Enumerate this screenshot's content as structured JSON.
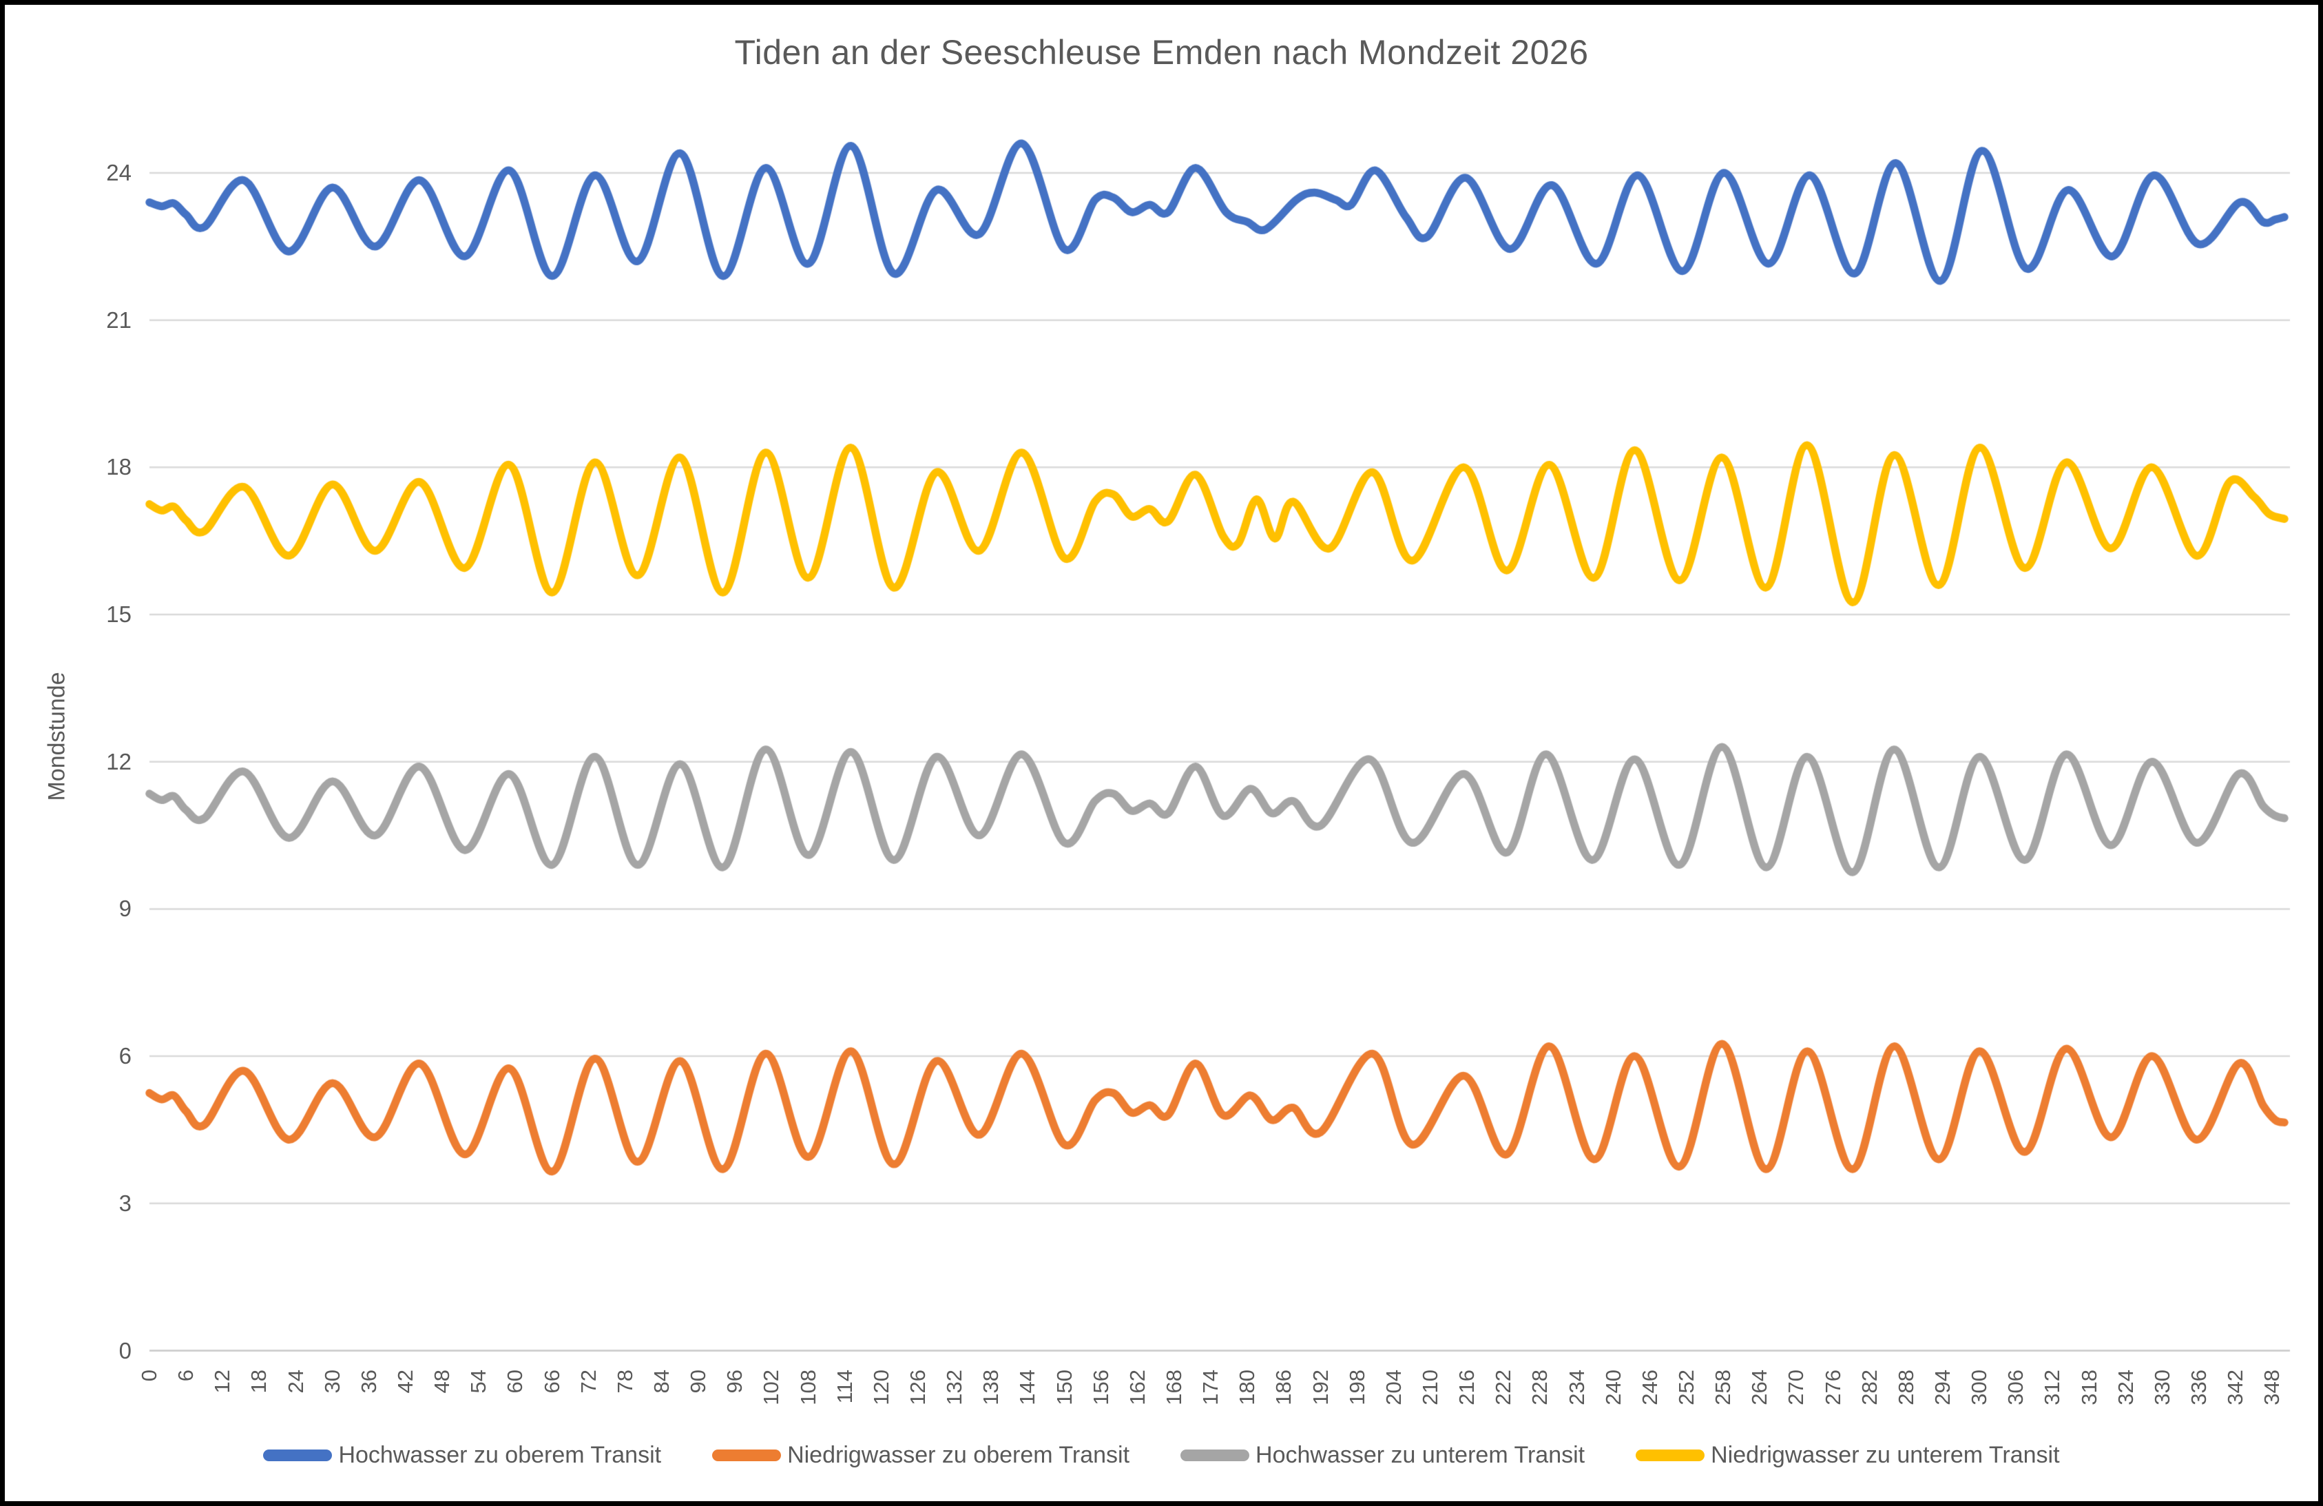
{
  "title": "Tiden an der Seeschleuse Emden nach Mondzeit 2026",
  "y_axis": {
    "label": "Mondstunde",
    "min": 0,
    "max": 24,
    "tick_step": 3,
    "ticks": [
      0,
      3,
      6,
      9,
      12,
      15,
      18,
      21,
      24
    ]
  },
  "x_axis": {
    "min": 0,
    "max": 348,
    "tick_step": 6,
    "ticks": [
      0,
      6,
      12,
      18,
      24,
      30,
      36,
      42,
      48,
      54,
      60,
      66,
      72,
      78,
      84,
      90,
      96,
      102,
      108,
      114,
      120,
      126,
      132,
      138,
      144,
      150,
      156,
      162,
      168,
      174,
      180,
      186,
      192,
      198,
      204,
      210,
      216,
      222,
      228,
      234,
      240,
      246,
      252,
      258,
      264,
      270,
      276,
      282,
      288,
      294,
      300,
      306,
      312,
      318,
      324,
      330,
      336,
      342,
      348
    ]
  },
  "legend": [
    {
      "label": "Hochwasser zu oberem Transit",
      "color": "#4472C4"
    },
    {
      "label": "Niedrigwasser zu oberem Transit",
      "color": "#ED7D31"
    },
    {
      "label": "Hochwasser zu unterem Transit",
      "color": "#A5A5A5"
    },
    {
      "label": "Niedrigwasser zu unterem Transit",
      "color": "#FFC000"
    }
  ],
  "colors": {
    "grid": "#D9D9D9",
    "axis_line": "#C8C8C8",
    "text": "#595959",
    "background": "#FFFFFF"
  },
  "chart_data": {
    "type": "line",
    "title": "Tiden an der Seeschleuse Emden nach Mondzeit 2026",
    "xlabel": "",
    "ylabel": "Mondstunde",
    "xlim": [
      0,
      350
    ],
    "ylim": [
      0,
      24
    ],
    "grid": true,
    "legend_position": "bottom",
    "series": [
      {
        "name": "Hochwasser zu oberem Transit",
        "color": "#4472C4",
        "points": [
          [
            0,
            23.4
          ],
          [
            2,
            23.32
          ],
          [
            4,
            23.38
          ],
          [
            6,
            23.15
          ],
          [
            9,
            22.9
          ],
          [
            15.5,
            23.85
          ],
          [
            22.8,
            22.4
          ],
          [
            30,
            23.7
          ],
          [
            37,
            22.5
          ],
          [
            44.3,
            23.85
          ],
          [
            51.7,
            22.3
          ],
          [
            59,
            24.05
          ],
          [
            66,
            21.9
          ],
          [
            73,
            23.95
          ],
          [
            80,
            22.2
          ],
          [
            87,
            24.4
          ],
          [
            94,
            21.9
          ],
          [
            101,
            24.1
          ],
          [
            108,
            22.15
          ],
          [
            115,
            24.55
          ],
          [
            122,
            21.95
          ],
          [
            129,
            23.65
          ],
          [
            136,
            22.75
          ],
          [
            143,
            24.6
          ],
          [
            150,
            22.45
          ],
          [
            155,
            23.45
          ],
          [
            158,
            23.5
          ],
          [
            161,
            23.2
          ],
          [
            164,
            23.35
          ],
          [
            167,
            23.2
          ],
          [
            171.5,
            24.1
          ],
          [
            176.5,
            23.2
          ],
          [
            180,
            23.0
          ],
          [
            183,
            22.85
          ],
          [
            188,
            23.45
          ],
          [
            191,
            23.6
          ],
          [
            194.5,
            23.45
          ],
          [
            197,
            23.35
          ],
          [
            201,
            24.05
          ],
          [
            206,
            23.1
          ],
          [
            209.5,
            22.7
          ],
          [
            215.8,
            23.9
          ],
          [
            223,
            22.45
          ],
          [
            229.9,
            23.75
          ],
          [
            237.2,
            22.15
          ],
          [
            244,
            23.95
          ],
          [
            251.3,
            22.0
          ],
          [
            258.1,
            24.0
          ],
          [
            265.4,
            22.15
          ],
          [
            272.2,
            23.95
          ],
          [
            279.5,
            21.95
          ],
          [
            286.3,
            24.2
          ],
          [
            293.6,
            21.8
          ],
          [
            300.4,
            24.45
          ],
          [
            307.7,
            22.05
          ],
          [
            314.5,
            23.65
          ],
          [
            321.8,
            22.3
          ],
          [
            328.6,
            23.95
          ],
          [
            335.9,
            22.55
          ],
          [
            342.7,
            23.4
          ],
          [
            346.5,
            23.0
          ],
          [
            348.5,
            23.05
          ],
          [
            350,
            23.1
          ]
        ]
      },
      {
        "name": "Niedrigwasser zu oberem Transit",
        "color": "#ED7D31",
        "points": [
          [
            0,
            5.25
          ],
          [
            2,
            5.12
          ],
          [
            4,
            5.2
          ],
          [
            6,
            4.88
          ],
          [
            9,
            4.6
          ],
          [
            15.5,
            5.7
          ],
          [
            22.8,
            4.3
          ],
          [
            30,
            5.45
          ],
          [
            37,
            4.35
          ],
          [
            44.3,
            5.85
          ],
          [
            51.7,
            4.0
          ],
          [
            59,
            5.75
          ],
          [
            66,
            3.65
          ],
          [
            73,
            5.95
          ],
          [
            80,
            3.85
          ],
          [
            87,
            5.9
          ],
          [
            94,
            3.7
          ],
          [
            101,
            6.05
          ],
          [
            108,
            3.95
          ],
          [
            115,
            6.1
          ],
          [
            122,
            3.8
          ],
          [
            129,
            5.9
          ],
          [
            136,
            4.4
          ],
          [
            143,
            6.05
          ],
          [
            150,
            4.2
          ],
          [
            155,
            5.1
          ],
          [
            158,
            5.25
          ],
          [
            161,
            4.85
          ],
          [
            164,
            5.0
          ],
          [
            167,
            4.8
          ],
          [
            171.5,
            5.85
          ],
          [
            176,
            4.8
          ],
          [
            180.5,
            5.2
          ],
          [
            184,
            4.7
          ],
          [
            187.5,
            4.95
          ],
          [
            192,
            4.45
          ],
          [
            200.5,
            6.05
          ],
          [
            207,
            4.2
          ],
          [
            215.5,
            5.6
          ],
          [
            222.5,
            4.0
          ],
          [
            229.5,
            6.2
          ],
          [
            236.8,
            3.9
          ],
          [
            243.5,
            6.0
          ],
          [
            250.8,
            3.75
          ],
          [
            257.8,
            6.25
          ],
          [
            265,
            3.7
          ],
          [
            271.8,
            6.1
          ],
          [
            279.2,
            3.7
          ],
          [
            286,
            6.2
          ],
          [
            293.3,
            3.9
          ],
          [
            300,
            6.1
          ],
          [
            307.4,
            4.05
          ],
          [
            314.2,
            6.15
          ],
          [
            321.5,
            4.35
          ],
          [
            328.3,
            6.0
          ],
          [
            335.6,
            4.3
          ],
          [
            342.5,
            5.85
          ],
          [
            346.5,
            5.0
          ],
          [
            348.5,
            4.7
          ],
          [
            350,
            4.65
          ]
        ]
      },
      {
        "name": "Hochwasser zu unterem Transit",
        "color": "#A5A5A5",
        "points": [
          [
            0,
            11.35
          ],
          [
            2,
            11.22
          ],
          [
            4,
            11.3
          ],
          [
            6,
            11.02
          ],
          [
            9,
            10.85
          ],
          [
            15.5,
            11.8
          ],
          [
            22.8,
            10.45
          ],
          [
            30,
            11.6
          ],
          [
            37,
            10.5
          ],
          [
            44.3,
            11.9
          ],
          [
            51.7,
            10.2
          ],
          [
            59,
            11.75
          ],
          [
            66,
            9.9
          ],
          [
            73,
            12.1
          ],
          [
            80,
            9.9
          ],
          [
            87,
            11.95
          ],
          [
            94,
            9.85
          ],
          [
            101,
            12.25
          ],
          [
            108,
            10.1
          ],
          [
            115,
            12.2
          ],
          [
            122,
            10.0
          ],
          [
            129,
            12.1
          ],
          [
            136,
            10.5
          ],
          [
            143,
            12.15
          ],
          [
            150,
            10.35
          ],
          [
            155,
            11.2
          ],
          [
            158,
            11.35
          ],
          [
            161,
            11.0
          ],
          [
            164,
            11.15
          ],
          [
            167,
            10.95
          ],
          [
            171.5,
            11.9
          ],
          [
            176,
            10.9
          ],
          [
            180.5,
            11.45
          ],
          [
            184,
            10.95
          ],
          [
            187.5,
            11.2
          ],
          [
            192,
            10.7
          ],
          [
            200,
            12.05
          ],
          [
            207,
            10.35
          ],
          [
            215.5,
            11.75
          ],
          [
            222.5,
            10.15
          ],
          [
            229,
            12.15
          ],
          [
            236.5,
            10.0
          ],
          [
            243.5,
            12.05
          ],
          [
            250.8,
            9.9
          ],
          [
            257.8,
            12.3
          ],
          [
            265,
            9.85
          ],
          [
            271.8,
            12.1
          ],
          [
            279.2,
            9.75
          ],
          [
            286,
            12.25
          ],
          [
            293.3,
            9.85
          ],
          [
            300,
            12.1
          ],
          [
            307.4,
            10.0
          ],
          [
            314.2,
            12.15
          ],
          [
            321.5,
            10.3
          ],
          [
            328.3,
            12.0
          ],
          [
            335.6,
            10.35
          ],
          [
            342.5,
            11.75
          ],
          [
            346.5,
            11.1
          ],
          [
            348.5,
            10.9
          ],
          [
            350,
            10.85
          ]
        ]
      },
      {
        "name": "Niedrigwasser zu unterem Transit",
        "color": "#FFC000",
        "points": [
          [
            0,
            17.25
          ],
          [
            2,
            17.12
          ],
          [
            4,
            17.2
          ],
          [
            6,
            16.92
          ],
          [
            9,
            16.7
          ],
          [
            15.5,
            17.6
          ],
          [
            22.8,
            16.2
          ],
          [
            30,
            17.65
          ],
          [
            37,
            16.3
          ],
          [
            44.3,
            17.7
          ],
          [
            51.7,
            15.95
          ],
          [
            59,
            18.05
          ],
          [
            66,
            15.45
          ],
          [
            73,
            18.1
          ],
          [
            80,
            15.8
          ],
          [
            87,
            18.2
          ],
          [
            94,
            15.45
          ],
          [
            101,
            18.3
          ],
          [
            108,
            15.75
          ],
          [
            115,
            18.4
          ],
          [
            122,
            15.55
          ],
          [
            129,
            17.9
          ],
          [
            136,
            16.3
          ],
          [
            143,
            18.3
          ],
          [
            150,
            16.15
          ],
          [
            155,
            17.3
          ],
          [
            158,
            17.45
          ],
          [
            161,
            17.0
          ],
          [
            164,
            17.15
          ],
          [
            167,
            16.9
          ],
          [
            171.5,
            17.85
          ],
          [
            176,
            16.6
          ],
          [
            178.5,
            16.45
          ],
          [
            181.5,
            17.35
          ],
          [
            184.5,
            16.55
          ],
          [
            187.5,
            17.3
          ],
          [
            193.5,
            16.35
          ],
          [
            200.5,
            17.9
          ],
          [
            207,
            16.1
          ],
          [
            215.5,
            18.0
          ],
          [
            222.5,
            15.9
          ],
          [
            229.5,
            18.05
          ],
          [
            236.8,
            15.75
          ],
          [
            243.5,
            18.35
          ],
          [
            250.8,
            15.7
          ],
          [
            257.8,
            18.2
          ],
          [
            265,
            15.55
          ],
          [
            271.8,
            18.45
          ],
          [
            279.2,
            15.25
          ],
          [
            286,
            18.25
          ],
          [
            293.3,
            15.6
          ],
          [
            300,
            18.4
          ],
          [
            307.4,
            15.95
          ],
          [
            314.2,
            18.1
          ],
          [
            321.5,
            16.35
          ],
          [
            328.3,
            18.0
          ],
          [
            335.6,
            16.2
          ],
          [
            341,
            17.7
          ],
          [
            345,
            17.4
          ],
          [
            347.5,
            17.05
          ],
          [
            350,
            16.95
          ]
        ]
      }
    ]
  }
}
